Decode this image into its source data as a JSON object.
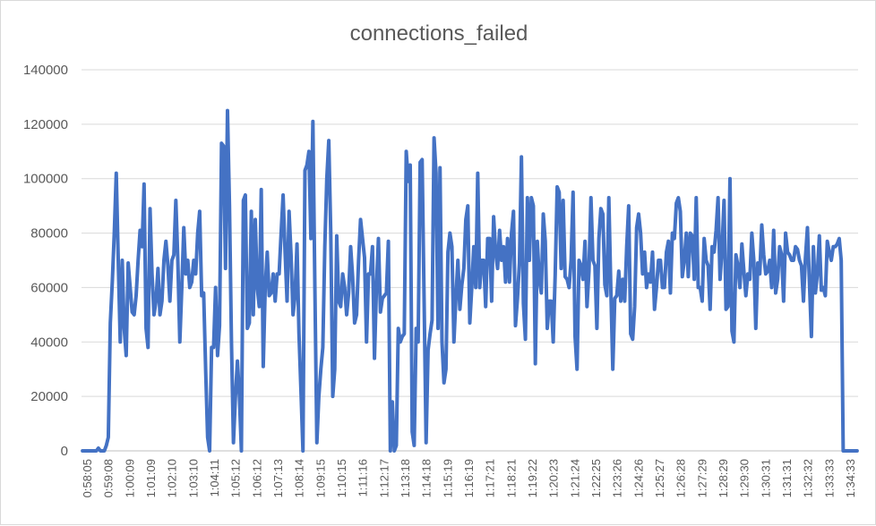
{
  "chart_data": {
    "type": "line",
    "title": "connections_failed",
    "xlabel": "",
    "ylabel": "",
    "ylim": [
      0,
      140000
    ],
    "yticks": [
      0,
      20000,
      40000,
      60000,
      80000,
      100000,
      120000,
      140000
    ],
    "ytick_labels": [
      "0",
      "20000",
      "40000",
      "60000",
      "80000",
      "100000",
      "120000",
      "140000"
    ],
    "grid": true,
    "legend": "none",
    "color": "#4472c4",
    "xtick_labels": [
      "0:58:05",
      "0:59:08",
      "1:00:09",
      "1:01:09",
      "1:02:10",
      "1:03:10",
      "1:04:11",
      "1:05:12",
      "1:06:12",
      "1:07:13",
      "1:08:14",
      "1:09:15",
      "1:10:15",
      "1:11:16",
      "1:12:17",
      "1:13:18",
      "1:14:18",
      "1:15:19",
      "1:16:19",
      "1:17:21",
      "1:18:21",
      "1:19:22",
      "1:20:23",
      "1:21:24",
      "1:22:25",
      "1:23:26",
      "1:24:26",
      "1:25:27",
      "1:26:28",
      "1:27:29",
      "1:28:29",
      "1:29:30",
      "1:30:31",
      "1:31:31",
      "1:32:32",
      "1:33:33",
      "1:34:33"
    ],
    "series": [
      {
        "values": [
          0,
          0,
          0,
          0,
          0,
          0,
          0,
          0,
          1000,
          0,
          0,
          0,
          2000,
          5000,
          47000,
          62000,
          80000,
          102000,
          70000,
          40000,
          70000,
          45000,
          35000,
          69000,
          60000,
          51000,
          50000,
          57000,
          70000,
          81000,
          75000,
          98000,
          45000,
          38000,
          89000,
          65000,
          50000,
          55000,
          67000,
          50000,
          55000,
          70000,
          77000,
          68000,
          55000,
          70000,
          72000,
          92000,
          70000,
          40000,
          60000,
          82000,
          65000,
          70000,
          60000,
          62000,
          70000,
          65000,
          80000,
          88000,
          57000,
          58000,
          30000,
          5000,
          0,
          38000,
          38000,
          60000,
          35000,
          46000,
          113000,
          112000,
          67000,
          125000,
          90000,
          40000,
          3000,
          20000,
          33000,
          20000,
          0,
          92000,
          94000,
          45000,
          47000,
          88000,
          50000,
          85000,
          60000,
          53000,
          96000,
          31000,
          60000,
          73000,
          57000,
          58000,
          65000,
          55000,
          65000,
          65000,
          80000,
          94000,
          73000,
          55000,
          88000,
          72000,
          50000,
          57000,
          76000,
          43000,
          22000,
          0,
          103000,
          105000,
          110000,
          78000,
          121000,
          60000,
          3000,
          20000,
          30000,
          38000,
          75000,
          100000,
          114000,
          80000,
          20000,
          30000,
          79000,
          55000,
          53000,
          65000,
          60000,
          50000,
          58000,
          75000,
          64000,
          47000,
          50000,
          70000,
          85000,
          78000,
          71000,
          40000,
          65000,
          65000,
          75000,
          34000,
          60000,
          78000,
          51000,
          56000,
          57000,
          58000,
          77000,
          0,
          18000,
          0,
          2000,
          45000,
          40000,
          42000,
          43000,
          110000,
          99000,
          105000,
          7000,
          2000,
          45000,
          40000,
          106000,
          107000,
          55000,
          3000,
          37000,
          43000,
          48000,
          115000,
          102000,
          45000,
          104000,
          40000,
          25000,
          30000,
          73000,
          80000,
          75000,
          40000,
          56000,
          70000,
          52000,
          61000,
          67000,
          85000,
          90000,
          47000,
          60000,
          75000,
          60000,
          102000,
          60000,
          70000,
          70000,
          53000,
          78000,
          78000,
          55000,
          86000,
          73000,
          67000,
          81000,
          70000,
          75000,
          62000,
          78000,
          62000,
          80000,
          88000,
          46000,
          56000,
          69000,
          108000,
          54000,
          41000,
          93000,
          70000,
          93000,
          90000,
          32000,
          77000,
          63000,
          58000,
          87000,
          77000,
          45000,
          55000,
          55000,
          40000,
          65000,
          97000,
          95000,
          67000,
          92000,
          64000,
          63000,
          60000,
          70000,
          95000,
          42000,
          30000,
          70000,
          68000,
          63000,
          77000,
          53000,
          66000,
          93000,
          70000,
          68000,
          45000,
          78000,
          89000,
          87000,
          61000,
          57000,
          93000,
          60000,
          30000,
          56000,
          57000,
          66000,
          55000,
          63000,
          55000,
          75000,
          90000,
          43000,
          41000,
          53000,
          82000,
          87000,
          80000,
          65000,
          73000,
          60000,
          65000,
          62000,
          73000,
          52000,
          60000,
          70000,
          70000,
          60000,
          60000,
          73000,
          77000,
          58000,
          80000,
          78000,
          91000,
          93000,
          88000,
          64000,
          70000,
          80000,
          64000,
          80000,
          79000,
          63000,
          93000,
          60000,
          60000,
          55000,
          78000,
          70000,
          68000,
          52000,
          75000,
          73000,
          81000,
          93000,
          63000,
          74000,
          92000,
          52000,
          53000,
          100000,
          44000,
          40000,
          72000,
          68000,
          60000,
          76000,
          66000,
          57000,
          65000,
          63000,
          80000,
          70000,
          45000,
          69000,
          65000,
          83000,
          72000,
          65000,
          66000,
          70000,
          60000,
          81000,
          58000,
          63000,
          75000,
          72000,
          55000,
          80000,
          73000,
          72000,
          70000,
          70000,
          75000,
          74000,
          70000,
          68000,
          55000,
          71000,
          82000,
          62000,
          42000,
          75000,
          58000,
          65000,
          79000,
          59000,
          60000,
          57000,
          77000,
          73000,
          70000,
          75000,
          75000,
          76000,
          78000,
          70000,
          0,
          0,
          0,
          0,
          0,
          0,
          0,
          0
        ]
      }
    ]
  }
}
